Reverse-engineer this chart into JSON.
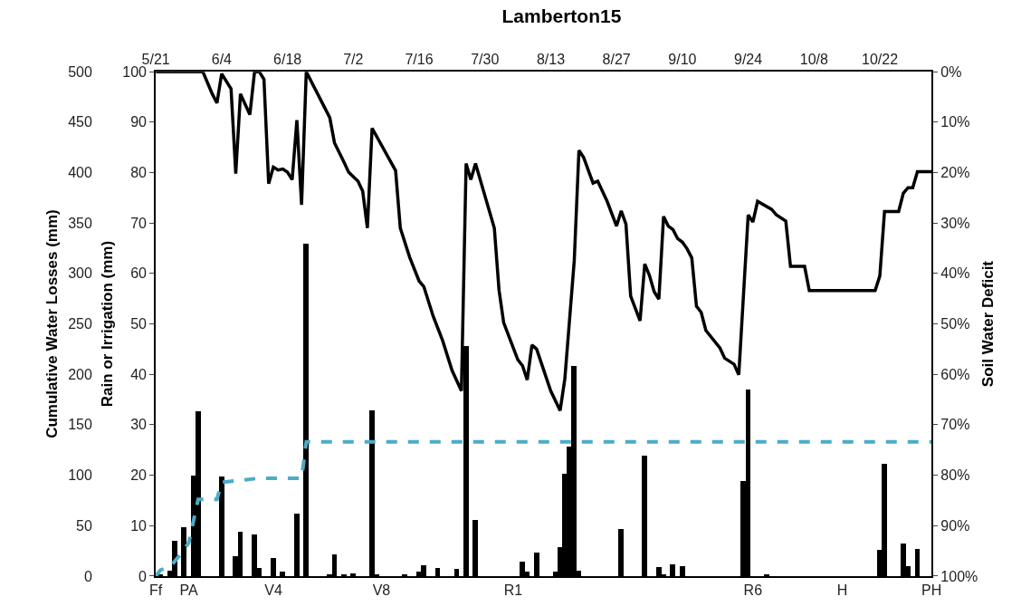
{
  "chart_data": {
    "type": "bar",
    "title": "Lamberton15",
    "ylabel": "Rain or Irrigation (mm)",
    "y2label": "Cumulative Water Losses (mm)",
    "y3label": "Soil Water Deficit",
    "xlim": [
      "--05-21",
      "--11-02"
    ],
    "xticks": [
      {
        "value": "--05-21",
        "label": "Ff"
      },
      {
        "value": "--05-28",
        "label": "PA"
      },
      {
        "value": "--06-15",
        "label": "V4"
      },
      {
        "value": "--07-08",
        "label": "V8"
      },
      {
        "value": "--08-05",
        "label": "R1"
      },
      {
        "value": "--09-25",
        "label": "R6"
      },
      {
        "value": "--10-14",
        "label": "H"
      },
      {
        "value": "--11-02",
        "label": "PH"
      }
    ],
    "x2lim": [
      "--05-21",
      "--11-02"
    ],
    "x2ticks": [
      {
        "value": "--05-21",
        "label": "5/21"
      },
      {
        "value": "--06-04",
        "label": "6/4"
      },
      {
        "value": "--06-18",
        "label": "6/18"
      },
      {
        "value": "--07-02",
        "label": "7/2"
      },
      {
        "value": "--07-16",
        "label": "7/16"
      },
      {
        "value": "--07-30",
        "label": "7/30"
      },
      {
        "value": "--08-13",
        "label": "8/13"
      },
      {
        "value": "--08-27",
        "label": "8/27"
      },
      {
        "value": "--09-10",
        "label": "9/10"
      },
      {
        "value": "--09-24",
        "label": "9/24"
      },
      {
        "value": "--10-08",
        "label": "10/8"
      },
      {
        "value": "--10-22",
        "label": "10/22"
      }
    ],
    "ylim": [
      0,
      100
    ],
    "yticks": [
      0,
      10,
      20,
      30,
      40,
      50,
      60,
      70,
      80,
      90,
      100
    ],
    "y2lim": [
      0,
      500
    ],
    "y2ticks": [
      0,
      50,
      100,
      150,
      200,
      250,
      300,
      350,
      400,
      450,
      500
    ],
    "y3lim": [
      100,
      0
    ],
    "y3ticks": [
      {
        "value": 0,
        "label": "0%"
      },
      {
        "value": 10,
        "label": "10%"
      },
      {
        "value": 20,
        "label": "20%"
      },
      {
        "value": 30,
        "label": "30%"
      },
      {
        "value": 40,
        "label": "40%"
      },
      {
        "value": 50,
        "label": "50%"
      },
      {
        "value": 60,
        "label": "60%"
      },
      {
        "value": 70,
        "label": "70%"
      },
      {
        "value": 80,
        "label": "80%"
      },
      {
        "value": 90,
        "label": "90%"
      },
      {
        "value": 100,
        "label": "100%"
      }
    ],
    "series": [
      {
        "color": "#000000",
        "x": [
          "--05-22",
          "--05-24",
          "--05-25",
          "--05-27",
          "--05-29",
          "--05-30",
          "--06-04",
          "--06-07",
          "--06-08",
          "--06-11",
          "--06-12",
          "--06-15",
          "--06-17",
          "--06-20",
          "--06-22",
          "--06-27",
          "--06-28",
          "--06-30",
          "--07-02",
          "--07-06",
          "--07-07",
          "--07-13",
          "--07-16",
          "--07-17",
          "--07-20",
          "--07-24",
          "--07-26",
          "--07-28",
          "--08-07",
          "--08-08",
          "--08-10",
          "--08-14",
          "--08-15",
          "--08-16",
          "--08-17",
          "--08-18",
          "--08-19",
          "--08-28",
          "--09-02",
          "--09-05",
          "--09-06",
          "--09-08",
          "--09-10",
          "--09-23",
          "--09-24",
          "--09-28",
          "--10-22",
          "--10-23",
          "--10-27",
          "--10-28",
          "--10-30"
        ],
        "values": [
          0.4,
          1.1,
          7.0,
          9.6,
          19.8,
          32.6,
          19.7,
          3.9,
          8.8,
          8.3,
          1.6,
          3.6,
          0.8,
          12.3,
          65.8,
          0.4,
          4.2,
          0.3,
          0.5,
          32.8,
          0.3,
          0.3,
          0.9,
          2.1,
          1.6,
          1.4,
          45.6,
          11.1,
          2.9,
          0.8,
          4.7,
          0.8,
          5.7,
          20.3,
          25.7,
          41.7,
          1.0,
          9.3,
          23.9,
          1.8,
          0.3,
          2.2,
          2.0,
          18.9,
          36.9,
          0.3,
          5.1,
          22.2,
          6.4,
          1.9,
          5.4
        ]
      },
      {
        "type": "line",
        "axis": "y2",
        "color": "#4bacc6",
        "line_style": "dashed",
        "x": [
          "--05-21",
          "--05-22",
          "--05-24",
          "--05-26",
          "--05-28",
          "--05-30",
          "--06-03",
          "--06-04",
          "--06-12",
          "--06-21",
          "--06-22",
          "--11-02"
        ],
        "values": [
          0,
          6,
          9,
          20,
          33,
          76,
          76,
          93,
          97,
          97,
          133,
          133
        ]
      },
      {
        "type": "line",
        "axis": "y3",
        "color": "#000000",
        "line_style": "solid",
        "x": [
          "--05-21",
          "--05-31",
          "--06-02",
          "--06-03",
          "--06-04",
          "--06-06",
          "--06-07",
          "--06-08",
          "--06-10",
          "--06-11",
          "--06-12",
          "--06-13",
          "--06-14",
          "--06-15",
          "--06-16",
          "--06-17",
          "--06-18",
          "--06-19",
          "--06-20",
          "--06-21",
          "--06-22",
          "--06-27",
          "--06-28",
          "--06-30",
          "--07-01",
          "--07-03",
          "--07-04",
          "--07-05",
          "--07-06",
          "--07-11",
          "--07-12",
          "--07-14",
          "--07-16",
          "--07-17",
          "--07-19",
          "--07-21",
          "--07-23",
          "--07-25",
          "--07-26",
          "--07-27",
          "--07-28",
          "--08-01",
          "--08-02",
          "--08-03",
          "--08-06",
          "--08-07",
          "--08-08",
          "--08-09",
          "--08-10",
          "--08-13",
          "--08-15",
          "--08-16",
          "--08-17",
          "--08-18",
          "--08-19",
          "--08-20",
          "--08-22",
          "--08-23",
          "--08-25",
          "--08-27",
          "--08-28",
          "--08-29",
          "--08-30",
          "--09-01",
          "--09-02",
          "--09-03",
          "--09-04",
          "--09-05",
          "--09-06",
          "--09-07",
          "--09-08",
          "--09-09",
          "--09-10",
          "--09-11",
          "--09-12",
          "--09-13",
          "--09-14",
          "--09-15",
          "--09-18",
          "--09-19",
          "--09-21",
          "--09-22",
          "--09-24",
          "--09-25",
          "--09-26",
          "--09-29",
          "--09-30",
          "--10-02",
          "--10-03",
          "--10-06",
          "--10-07",
          "--10-21",
          "--10-22",
          "--10-23",
          "--10-26",
          "--10-27",
          "--10-28",
          "--10-29",
          "--10-30",
          "--11-02"
        ],
        "values": [
          0,
          0,
          4.4,
          6.2,
          0.4,
          3.4,
          20.2,
          4.4,
          8.5,
          0,
          0,
          1.5,
          22.2,
          18.9,
          19.5,
          19.3,
          19.9,
          21.4,
          9.6,
          26.4,
          0,
          9.1,
          14.1,
          17.9,
          19.9,
          21.7,
          23.7,
          31,
          11.2,
          19.6,
          31,
          36.8,
          41.5,
          42.6,
          48.5,
          53.3,
          59.2,
          63.3,
          18.2,
          21.4,
          18.2,
          31,
          43.3,
          49.8,
          57.1,
          58.3,
          61.1,
          54.2,
          55.0,
          63.3,
          67.2,
          60.9,
          49.2,
          37.5,
          15.6,
          17.0,
          22.1,
          21.7,
          25.7,
          30.6,
          27.6,
          30.2,
          44.5,
          49.4,
          38.1,
          40.4,
          43.6,
          45.1,
          28.7,
          30.6,
          31.3,
          33.1,
          33.8,
          35.1,
          36.9,
          46.5,
          47.7,
          51.3,
          54.8,
          56.8,
          58.0,
          60.1,
          28.4,
          29.8,
          25.7,
          27.3,
          28.4,
          29.6,
          38.6,
          38.6,
          43.4,
          43.4,
          40.5,
          27.7,
          27.7,
          24.1,
          23.0,
          23.0,
          19.8,
          19.8
        ]
      }
    ]
  }
}
